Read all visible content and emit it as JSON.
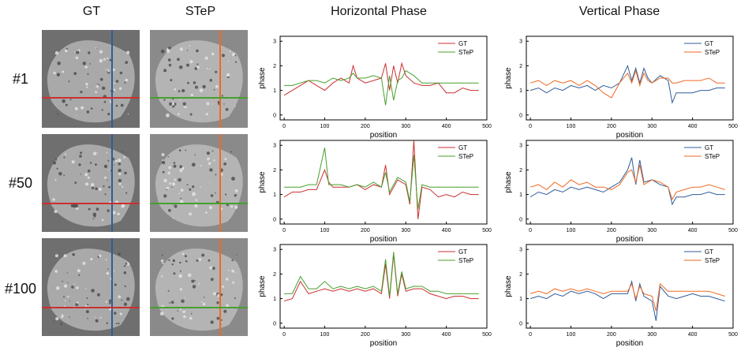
{
  "columns": {
    "gt": "GT",
    "step": "STeP",
    "horizontal": "Horizontal Phase",
    "vertical": "Vertical Phase"
  },
  "rows": [
    {
      "label": "#1"
    },
    {
      "label": "#50"
    },
    {
      "label": "#100"
    }
  ],
  "line_colors": {
    "gt_h": "#cc2f2f",
    "step_h": "#46a02e",
    "gt_v": "#2f5d9b",
    "step_v": "#ef6a23"
  },
  "chart_data": [
    {
      "type": "line",
      "panel": "#1 Horizontal Phase",
      "xlabel": "position",
      "ylabel": "phase",
      "xlim": [
        -10,
        500
      ],
      "ylim": [
        -0.2,
        3.2
      ],
      "xticks": [
        0,
        100,
        200,
        300,
        400,
        500
      ],
      "yticks": [
        0,
        1,
        2,
        3
      ],
      "legend_position": "top-right",
      "series": [
        {
          "name": "GT",
          "color": "#cc2f2f",
          "x": [
            0,
            20,
            40,
            60,
            80,
            100,
            120,
            140,
            160,
            170,
            180,
            200,
            220,
            240,
            250,
            260,
            270,
            280,
            290,
            300,
            320,
            340,
            360,
            380,
            400,
            420,
            440,
            460,
            480
          ],
          "values": [
            0.8,
            1.0,
            1.2,
            1.4,
            1.2,
            1.0,
            1.3,
            1.5,
            1.3,
            2.0,
            1.5,
            1.3,
            1.4,
            1.5,
            2.1,
            1.0,
            2.0,
            1.3,
            2.1,
            1.6,
            1.3,
            1.2,
            1.2,
            1.3,
            0.9,
            0.9,
            1.1,
            1.0,
            1.0
          ]
        },
        {
          "name": "STeP",
          "color": "#46a02e",
          "x": [
            0,
            20,
            40,
            60,
            80,
            100,
            120,
            140,
            160,
            170,
            180,
            200,
            220,
            240,
            250,
            260,
            270,
            280,
            290,
            300,
            320,
            340,
            360,
            380,
            400,
            420,
            440,
            460,
            480
          ],
          "values": [
            1.2,
            1.2,
            1.3,
            1.4,
            1.4,
            1.3,
            1.5,
            1.4,
            1.5,
            1.7,
            1.5,
            1.5,
            1.6,
            1.5,
            0.4,
            1.6,
            0.6,
            1.4,
            1.5,
            1.8,
            1.6,
            1.3,
            1.3,
            1.3,
            1.3,
            1.3,
            1.3,
            1.3,
            1.3
          ]
        }
      ]
    },
    {
      "type": "line",
      "panel": "#1 Vertical Phase",
      "xlabel": "position",
      "ylabel": "phase",
      "xlim": [
        -10,
        500
      ],
      "ylim": [
        -0.2,
        3.2
      ],
      "xticks": [
        0,
        100,
        200,
        300,
        400,
        500
      ],
      "yticks": [
        0,
        1,
        2,
        3
      ],
      "legend_position": "top-right",
      "series": [
        {
          "name": "GT",
          "color": "#2f5d9b",
          "x": [
            0,
            20,
            40,
            60,
            80,
            100,
            120,
            140,
            160,
            180,
            200,
            220,
            240,
            250,
            260,
            270,
            280,
            290,
            300,
            320,
            340,
            350,
            360,
            380,
            400,
            420,
            440,
            460,
            480
          ],
          "values": [
            1.0,
            1.1,
            0.9,
            1.1,
            1.0,
            1.2,
            1.1,
            1.2,
            1.0,
            1.2,
            1.1,
            1.3,
            2.0,
            1.4,
            1.9,
            1.3,
            1.9,
            1.5,
            1.3,
            1.6,
            1.4,
            0.5,
            0.9,
            0.9,
            0.9,
            1.0,
            1.0,
            1.1,
            1.1
          ]
        },
        {
          "name": "STeP",
          "color": "#ef6a23",
          "x": [
            0,
            20,
            40,
            60,
            80,
            100,
            120,
            140,
            160,
            180,
            200,
            220,
            240,
            250,
            260,
            270,
            280,
            290,
            300,
            320,
            340,
            350,
            360,
            380,
            400,
            420,
            440,
            460,
            480
          ],
          "values": [
            1.3,
            1.4,
            1.2,
            1.4,
            1.3,
            1.4,
            1.2,
            1.4,
            1.2,
            0.9,
            0.7,
            1.3,
            1.7,
            1.3,
            1.8,
            1.2,
            1.7,
            1.4,
            1.3,
            1.5,
            1.5,
            1.3,
            1.3,
            1.4,
            1.4,
            1.4,
            1.5,
            1.3,
            1.3
          ]
        }
      ]
    },
    {
      "type": "line",
      "panel": "#50 Horizontal Phase",
      "xlabel": "position",
      "ylabel": "phase",
      "xlim": [
        -10,
        500
      ],
      "ylim": [
        -0.2,
        3.2
      ],
      "xticks": [
        0,
        100,
        200,
        300,
        400,
        500
      ],
      "yticks": [
        0,
        1,
        2,
        3
      ],
      "legend_position": "top-right",
      "series": [
        {
          "name": "GT",
          "color": "#cc2f2f",
          "x": [
            0,
            20,
            40,
            60,
            80,
            100,
            110,
            120,
            140,
            160,
            180,
            200,
            220,
            240,
            250,
            260,
            280,
            300,
            310,
            320,
            330,
            340,
            360,
            380,
            400,
            420,
            440,
            460,
            480
          ],
          "values": [
            0.9,
            1.1,
            1.1,
            1.2,
            1.2,
            2.0,
            1.5,
            1.3,
            1.3,
            1.3,
            1.4,
            1.2,
            1.4,
            1.3,
            2.2,
            1.0,
            1.6,
            1.4,
            0.6,
            3.2,
            0.0,
            1.3,
            1.2,
            0.9,
            1.0,
            0.9,
            1.1,
            1.0,
            1.0
          ]
        },
        {
          "name": "STeP",
          "color": "#46a02e",
          "x": [
            0,
            20,
            40,
            60,
            80,
            100,
            110,
            120,
            140,
            160,
            180,
            200,
            220,
            240,
            250,
            260,
            280,
            300,
            310,
            320,
            330,
            340,
            360,
            380,
            400,
            420,
            440,
            460,
            480
          ],
          "values": [
            1.3,
            1.3,
            1.3,
            1.4,
            1.4,
            2.9,
            1.4,
            1.4,
            1.4,
            1.3,
            1.4,
            1.3,
            1.5,
            1.3,
            1.9,
            1.1,
            1.7,
            1.5,
            0.7,
            2.6,
            0.4,
            1.4,
            1.3,
            1.3,
            1.3,
            1.3,
            1.3,
            1.3,
            1.3
          ]
        }
      ]
    },
    {
      "type": "line",
      "panel": "#50 Vertical Phase",
      "xlabel": "position",
      "ylabel": "phase",
      "xlim": [
        -10,
        500
      ],
      "ylim": [
        -0.2,
        3.2
      ],
      "xticks": [
        0,
        100,
        200,
        300,
        400,
        500
      ],
      "yticks": [
        0,
        1,
        2,
        3
      ],
      "legend_position": "top-right",
      "series": [
        {
          "name": "GT",
          "color": "#2f5d9b",
          "x": [
            0,
            20,
            40,
            60,
            80,
            100,
            120,
            140,
            160,
            180,
            200,
            220,
            240,
            250,
            260,
            270,
            280,
            300,
            320,
            340,
            350,
            360,
            380,
            400,
            420,
            440,
            460,
            480
          ],
          "values": [
            0.9,
            1.1,
            1.0,
            1.2,
            1.1,
            1.3,
            1.2,
            1.3,
            1.2,
            1.1,
            1.3,
            1.5,
            2.0,
            2.5,
            1.4,
            2.4,
            1.5,
            1.6,
            1.4,
            1.3,
            0.6,
            0.9,
            0.9,
            1.0,
            1.0,
            1.1,
            1.0,
            1.0
          ]
        },
        {
          "name": "STeP",
          "color": "#ef6a23",
          "x": [
            0,
            20,
            40,
            60,
            80,
            100,
            120,
            140,
            160,
            180,
            200,
            220,
            240,
            250,
            260,
            270,
            280,
            300,
            320,
            340,
            350,
            360,
            380,
            400,
            420,
            440,
            460,
            480
          ],
          "values": [
            1.3,
            1.4,
            1.2,
            1.5,
            1.3,
            1.6,
            1.4,
            1.5,
            1.3,
            1.3,
            1.2,
            1.4,
            1.9,
            2.0,
            1.5,
            2.2,
            1.4,
            1.6,
            1.5,
            1.3,
            0.8,
            1.1,
            1.2,
            1.3,
            1.3,
            1.4,
            1.3,
            1.2
          ]
        }
      ]
    },
    {
      "type": "line",
      "panel": "#100 Horizontal Phase",
      "xlabel": "position",
      "ylabel": "phase",
      "xlim": [
        -10,
        500
      ],
      "ylim": [
        -0.2,
        3.2
      ],
      "xticks": [
        0,
        100,
        200,
        300,
        400,
        500
      ],
      "yticks": [
        0,
        1,
        2,
        3
      ],
      "legend_position": "top-right",
      "series": [
        {
          "name": "GT",
          "color": "#cc2f2f",
          "x": [
            0,
            20,
            40,
            60,
            80,
            100,
            120,
            140,
            160,
            180,
            200,
            220,
            240,
            250,
            260,
            270,
            280,
            290,
            300,
            320,
            340,
            360,
            380,
            400,
            420,
            440,
            460,
            480
          ],
          "values": [
            0.9,
            1.0,
            1.7,
            1.2,
            1.3,
            1.4,
            1.3,
            1.4,
            1.3,
            1.4,
            1.3,
            1.4,
            1.2,
            2.4,
            1.0,
            2.8,
            1.1,
            2.0,
            1.3,
            1.4,
            1.4,
            1.2,
            1.1,
            1.0,
            1.1,
            1.1,
            1.0,
            1.0
          ]
        },
        {
          "name": "STeP",
          "color": "#46a02e",
          "x": [
            0,
            20,
            40,
            60,
            80,
            100,
            120,
            140,
            160,
            180,
            200,
            220,
            240,
            250,
            260,
            270,
            280,
            290,
            300,
            320,
            340,
            360,
            380,
            400,
            420,
            440,
            460,
            480
          ],
          "values": [
            1.2,
            1.2,
            1.9,
            1.4,
            1.4,
            1.7,
            1.4,
            1.5,
            1.4,
            1.5,
            1.4,
            1.5,
            1.3,
            2.6,
            1.1,
            2.9,
            1.2,
            2.1,
            1.4,
            1.5,
            1.5,
            1.3,
            1.3,
            1.2,
            1.2,
            1.2,
            1.2,
            1.2
          ]
        }
      ]
    },
    {
      "type": "line",
      "panel": "#100 Vertical Phase",
      "xlabel": "position",
      "ylabel": "phase",
      "xlim": [
        -10,
        500
      ],
      "ylim": [
        -0.2,
        3.2
      ],
      "xticks": [
        0,
        100,
        200,
        300,
        400,
        500
      ],
      "yticks": [
        0,
        1,
        2,
        3
      ],
      "legend_position": "top-right",
      "series": [
        {
          "name": "GT",
          "color": "#2f5d9b",
          "x": [
            0,
            20,
            40,
            60,
            80,
            100,
            120,
            140,
            160,
            180,
            200,
            220,
            240,
            250,
            260,
            270,
            280,
            300,
            310,
            320,
            340,
            360,
            380,
            400,
            420,
            440,
            460,
            480
          ],
          "values": [
            1.0,
            1.1,
            1.0,
            1.2,
            1.1,
            1.3,
            1.2,
            1.3,
            1.2,
            1.0,
            1.2,
            1.2,
            1.2,
            1.7,
            0.9,
            1.6,
            1.1,
            0.9,
            0.1,
            1.5,
            1.1,
            1.0,
            1.1,
            1.2,
            1.1,
            1.1,
            1.0,
            0.9
          ]
        },
        {
          "name": "STeP",
          "color": "#ef6a23",
          "x": [
            0,
            20,
            40,
            60,
            80,
            100,
            120,
            140,
            160,
            180,
            200,
            220,
            240,
            250,
            260,
            270,
            280,
            300,
            310,
            320,
            340,
            360,
            380,
            400,
            420,
            440,
            460,
            480
          ],
          "values": [
            1.2,
            1.3,
            1.2,
            1.4,
            1.3,
            1.4,
            1.3,
            1.4,
            1.3,
            1.2,
            1.3,
            1.3,
            1.3,
            1.6,
            1.0,
            1.5,
            1.2,
            1.1,
            0.5,
            1.6,
            1.3,
            1.3,
            1.3,
            1.3,
            1.3,
            1.3,
            1.2,
            1.1
          ]
        }
      ]
    }
  ]
}
